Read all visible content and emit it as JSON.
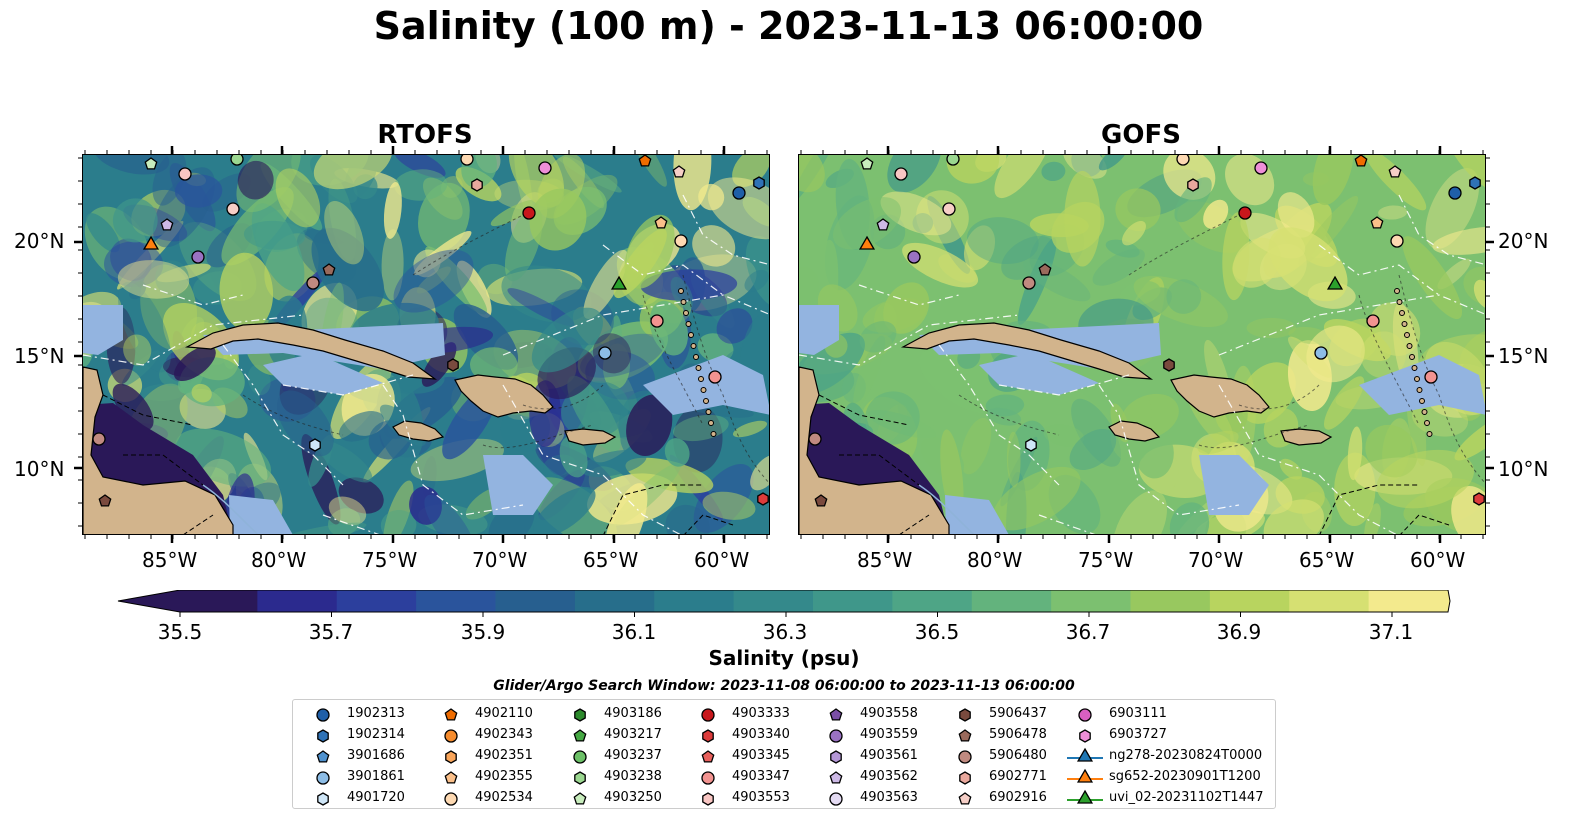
{
  "title": "Salinity (100 m) - 2023-11-13 06:00:00",
  "panels": [
    {
      "title": "RTOFS",
      "model": "rtofs"
    },
    {
      "title": "GOFS",
      "model": "gofs"
    }
  ],
  "axes": {
    "lon_labels": [
      "85°W",
      "80°W",
      "75°W",
      "70°W",
      "65°W",
      "60°W"
    ],
    "lat_labels": [
      "20°N",
      "15°N",
      "10°N"
    ]
  },
  "colorbar": {
    "ticks": [
      "35.5",
      "35.7",
      "35.9",
      "36.1",
      "36.3",
      "36.5",
      "36.7",
      "36.9",
      "37.1"
    ],
    "label": "Salinity (psu)",
    "colors": [
      "#2a1858",
      "#2b2a8e",
      "#2c3f9d",
      "#2a549c",
      "#275f8f",
      "#276e8b",
      "#2b7d8c",
      "#34898b",
      "#3f978a",
      "#4ea586",
      "#63b37d",
      "#7cc070",
      "#98c85f",
      "#b8d45f",
      "#d6e072",
      "#f3ea8d"
    ]
  },
  "legend": {
    "title": "Glider/Argo Search Window: 2023-11-08 06:00:00 to 2023-11-13 06:00:00",
    "columns": [
      [
        {
          "label": "1902313",
          "marker": "circle",
          "color": "#1f5fa8"
        },
        {
          "label": "1902314",
          "marker": "hexagon",
          "color": "#2f72b6"
        },
        {
          "label": "3901686",
          "marker": "pentagon",
          "color": "#4f92cf"
        },
        {
          "label": "3901861",
          "marker": "circle",
          "color": "#8dbde6"
        },
        {
          "label": "4901720",
          "marker": "hexagon",
          "color": "#cfe6f7"
        }
      ],
      [
        {
          "label": "4902110",
          "marker": "pentagon",
          "color": "#ef6c00"
        },
        {
          "label": "4902343",
          "marker": "circle",
          "color": "#f68c2e"
        },
        {
          "label": "4902351",
          "marker": "hexagon",
          "color": "#f9a55a"
        },
        {
          "label": "4902355",
          "marker": "pentagon",
          "color": "#fbc08a"
        },
        {
          "label": "4902534",
          "marker": "circle",
          "color": "#fdd9b2"
        }
      ],
      [
        {
          "label": "4903186",
          "marker": "hexagon",
          "color": "#2c8a2c"
        },
        {
          "label": "4903217",
          "marker": "pentagon",
          "color": "#45a843"
        },
        {
          "label": "4903237",
          "marker": "circle",
          "color": "#6cc067"
        },
        {
          "label": "4903238",
          "marker": "hexagon",
          "color": "#9bd790"
        },
        {
          "label": "4903250",
          "marker": "pentagon",
          "color": "#c8edbd"
        }
      ],
      [
        {
          "label": "4903333",
          "marker": "circle",
          "color": "#c8171c"
        },
        {
          "label": "4903340",
          "marker": "hexagon",
          "color": "#dc3b3b"
        },
        {
          "label": "4903345",
          "marker": "pentagon",
          "color": "#e8605c"
        },
        {
          "label": "4903347",
          "marker": "circle",
          "color": "#f29390"
        },
        {
          "label": "4903553",
          "marker": "hexagon",
          "color": "#f9c6c3"
        }
      ],
      [
        {
          "label": "4903558",
          "marker": "pentagon",
          "color": "#7b4fa6"
        },
        {
          "label": "4903559",
          "marker": "circle",
          "color": "#9a72c2"
        },
        {
          "label": "4903561",
          "marker": "hexagon",
          "color": "#b497d6"
        },
        {
          "label": "4903562",
          "marker": "pentagon",
          "color": "#cdb9e6"
        },
        {
          "label": "4903563",
          "marker": "circle",
          "color": "#e4dbf3"
        }
      ],
      [
        {
          "label": "5906437",
          "marker": "hexagon",
          "color": "#7a4a3e"
        },
        {
          "label": "5906478",
          "marker": "pentagon",
          "color": "#9a6a5c"
        },
        {
          "label": "5906480",
          "marker": "circle",
          "color": "#c08a80"
        },
        {
          "label": "6902771",
          "marker": "hexagon",
          "color": "#e9a89d"
        },
        {
          "label": "6902916",
          "marker": "pentagon",
          "color": "#f6cfc7"
        }
      ],
      [
        {
          "label": "6903111",
          "marker": "circle",
          "color": "#d95fc2"
        },
        {
          "label": "6903727",
          "marker": "hexagon",
          "color": "#ee8fd8"
        },
        {
          "label": "ng278-20230824T0000",
          "marker": "triangle-line",
          "color": "#1f77b4"
        },
        {
          "label": "sg652-20230901T1200",
          "marker": "triangle-line",
          "color": "#ff7f0e"
        },
        {
          "label": "uvi_02-20231102T1447",
          "marker": "triangle-line",
          "color": "#2ca02c"
        }
      ]
    ]
  },
  "colors": {
    "land": "#d2b48c",
    "shelf": "#93b4e0"
  }
}
